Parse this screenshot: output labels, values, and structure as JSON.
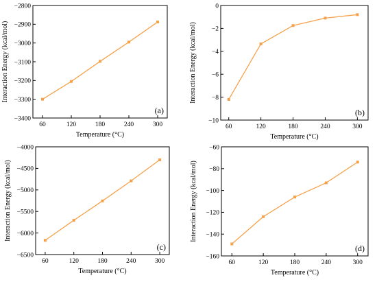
{
  "style": {
    "line_color": "#f5a14a",
    "axis_color": "#000000"
  },
  "chart_data": [
    {
      "type": "line",
      "panel_label": "(a)",
      "xlabel": "Temperature (°C)",
      "ylabel": "Interaction Energy (kcal/mol)",
      "x": [
        60,
        120,
        180,
        240,
        300
      ],
      "xticks": [
        "60",
        "120",
        "180",
        "240",
        "300"
      ],
      "xlim": [
        40,
        320
      ],
      "yticks": [
        "−3400",
        "−3300",
        "−3200",
        "−3100",
        "−3000",
        "−2900",
        "−2800"
      ],
      "ytick_values": [
        -3400,
        -3300,
        -3200,
        -3100,
        -3000,
        -2900,
        -2800
      ],
      "ylim": [
        -3400,
        -2800
      ],
      "series": [
        {
          "values": [
            -3300,
            -3205,
            -3098,
            -2995,
            -2888
          ]
        }
      ]
    },
    {
      "type": "line",
      "panel_label": "(b)",
      "xlabel": "Temperature (°C)",
      "ylabel": "Interaction Energy (kcal/mol)",
      "x": [
        60,
        120,
        180,
        240,
        300
      ],
      "xticks": [
        "60",
        "120",
        "180",
        "240",
        "300"
      ],
      "xlim": [
        45,
        320
      ],
      "yticks": [
        "−10",
        "−8",
        "−6",
        "−4",
        "−2",
        "0"
      ],
      "ytick_values": [
        -10,
        -8,
        -6,
        -4,
        -2,
        0
      ],
      "ylim": [
        -10,
        0
      ],
      "series": [
        {
          "values": [
            -8.2,
            -3.35,
            -1.75,
            -1.1,
            -0.8
          ]
        }
      ]
    },
    {
      "type": "line",
      "panel_label": "(c)",
      "xlabel": "Temperature (°C)",
      "ylabel": "Interaction Energy (kcal/mol)",
      "x": [
        60,
        120,
        180,
        240,
        300
      ],
      "xticks": [
        "60",
        "120",
        "180",
        "240",
        "300"
      ],
      "xlim": [
        40,
        320
      ],
      "yticks": [
        "−6500",
        "−6000",
        "−5500",
        "−5000",
        "−4500",
        "−4000"
      ],
      "ytick_values": [
        -6500,
        -6000,
        -5500,
        -5000,
        -4500,
        -4000
      ],
      "ylim": [
        -6500,
        -4000
      ],
      "series": [
        {
          "values": [
            -6170,
            -5705,
            -5255,
            -4790,
            -4300
          ]
        }
      ]
    },
    {
      "type": "line",
      "panel_label": "(d)",
      "xlabel": "Temperature (°C)",
      "ylabel": "Interaction Energy (kcal/mol)",
      "x": [
        60,
        120,
        180,
        240,
        300
      ],
      "xticks": [
        "60",
        "120",
        "180",
        "240",
        "300"
      ],
      "xlim": [
        40,
        320
      ],
      "yticks": [
        "−160",
        "−140",
        "−120",
        "−100",
        "−80",
        "−60"
      ],
      "ytick_values": [
        -160,
        -140,
        -120,
        -100,
        -80,
        -60
      ],
      "ylim": [
        -160,
        -60
      ],
      "series": [
        {
          "values": [
            -149,
            -124,
            -106,
            -93,
            -74
          ]
        }
      ]
    }
  ]
}
